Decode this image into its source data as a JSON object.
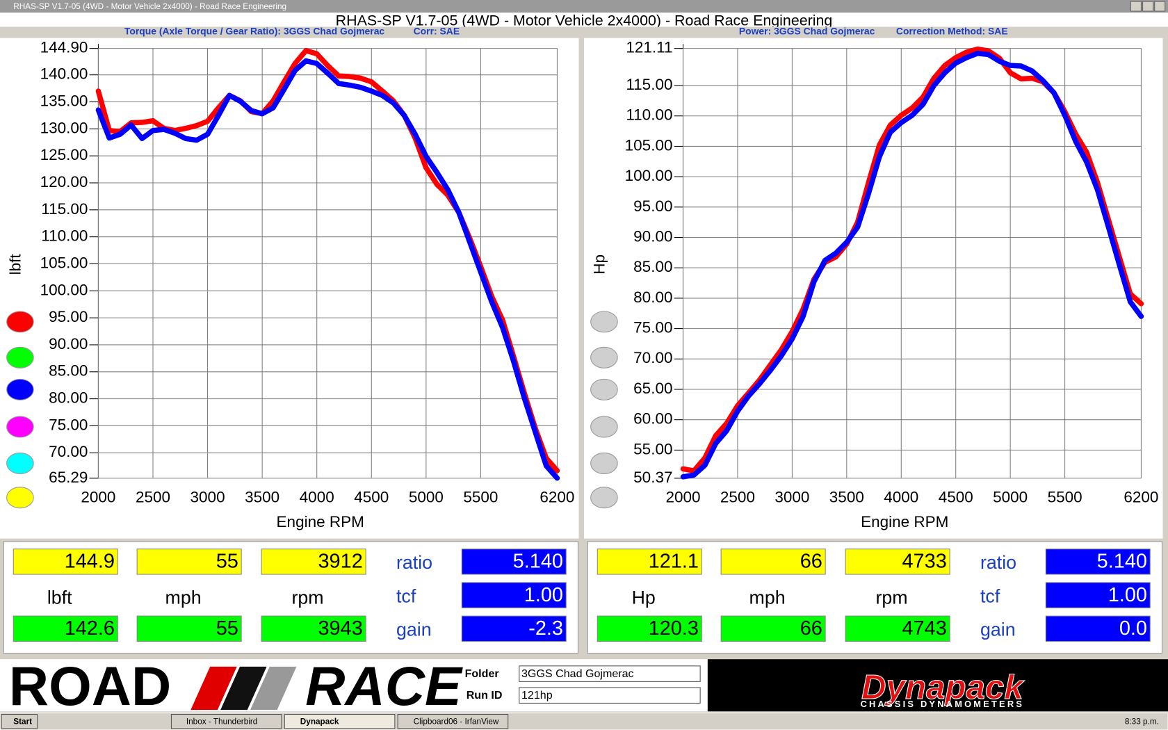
{
  "window": {
    "title": "RHAS-SP V1.7-05  (4WD - Motor Vehicle 2x4000) - Road Race Engineering"
  },
  "header": {
    "title": "RHAS-SP V1.7-05   (4WD - Motor Vehicle 2x4000) - Road Race Engineering"
  },
  "chart_data": [
    {
      "type": "line",
      "subtitle": "Torque (Axle Torque / Gear Ratio): 3GGS Chad Gojmerac",
      "correction": "Corr: SAE",
      "ylabel": "lbft",
      "xlabel": "Engine RPM",
      "grid": true,
      "x": [
        2000,
        2100,
        2200,
        2300,
        2400,
        2500,
        2600,
        2700,
        2800,
        2900,
        3000,
        3100,
        3200,
        3300,
        3400,
        3500,
        3600,
        3700,
        3800,
        3900,
        4000,
        4100,
        4200,
        4300,
        4400,
        4500,
        4600,
        4700,
        4800,
        4900,
        5000,
        5100,
        5200,
        5300,
        5400,
        5500,
        5600,
        5700,
        5800,
        5900,
        6000,
        6100,
        6200
      ],
      "xlim": [
        2000,
        6200
      ],
      "xticks": [
        2000,
        2500,
        3000,
        3500,
        4000,
        4500,
        5000,
        5500,
        6200
      ],
      "ylim": [
        65.29,
        144.9
      ],
      "yticks": [
        {
          "value": 65.29,
          "label": "65.29"
        },
        {
          "value": 70,
          "label": "70.00"
        },
        {
          "value": 75,
          "label": "75.00"
        },
        {
          "value": 80,
          "label": "80.00"
        },
        {
          "value": 85,
          "label": "85.00"
        },
        {
          "value": 90,
          "label": "90.00"
        },
        {
          "value": 95,
          "label": "95.00"
        },
        {
          "value": 100,
          "label": "100.00"
        },
        {
          "value": 105,
          "label": "105.00"
        },
        {
          "value": 110,
          "label": "110.00"
        },
        {
          "value": 115,
          "label": "115.00"
        },
        {
          "value": 120,
          "label": "120.00"
        },
        {
          "value": 125,
          "label": "125.00"
        },
        {
          "value": 130,
          "label": "130.00"
        },
        {
          "value": 135,
          "label": "135.00"
        },
        {
          "value": 140,
          "label": "140.00"
        },
        {
          "value": 144.9,
          "label": "144.90"
        }
      ],
      "series": [
        {
          "color": "#ff0000",
          "values": [
            137.0,
            129.7,
            129.5,
            131.1,
            131.2,
            131.5,
            130.1,
            129.7,
            130.1,
            130.6,
            131.4,
            133.9,
            136.2,
            135.2,
            133.2,
            132.8,
            135.2,
            138.7,
            142.1,
            144.5,
            143.9,
            141.7,
            139.8,
            139.7,
            139.4,
            138.7,
            137.0,
            135.2,
            132.5,
            128.3,
            122.8,
            119.7,
            117.7,
            114.5,
            109.7,
            104.5,
            99.0,
            94.6,
            87.9,
            81.0,
            74.5,
            69.0,
            66.7
          ]
        },
        {
          "color": "#0000ff",
          "values": [
            133.5,
            128.3,
            129.0,
            130.7,
            128.2,
            129.7,
            129.9,
            129.2,
            128.2,
            127.9,
            129.0,
            132.5,
            136.2,
            135.1,
            133.4,
            132.8,
            133.9,
            137.3,
            140.8,
            142.6,
            142.1,
            140.3,
            138.4,
            138.1,
            137.7,
            137.0,
            136.2,
            134.8,
            132.5,
            129.0,
            124.9,
            121.9,
            118.7,
            114.5,
            109.0,
            103.5,
            98.0,
            93.2,
            87.0,
            80.1,
            73.8,
            67.6,
            65.3
          ]
        }
      ]
    },
    {
      "type": "line",
      "subtitle": "Power: 3GGS Chad Gojmerac",
      "correction": "Correction Method: SAE",
      "ylabel": "Hp",
      "xlabel": "Engine RPM",
      "grid": true,
      "x": [
        2000,
        2100,
        2200,
        2300,
        2400,
        2500,
        2600,
        2700,
        2800,
        2900,
        3000,
        3100,
        3200,
        3300,
        3400,
        3500,
        3600,
        3700,
        3800,
        3900,
        4000,
        4100,
        4200,
        4300,
        4400,
        4500,
        4600,
        4700,
        4800,
        4900,
        5000,
        5100,
        5200,
        5300,
        5400,
        5500,
        5600,
        5700,
        5800,
        5900,
        6000,
        6100,
        6200
      ],
      "xlim": [
        2000,
        6200
      ],
      "xticks": [
        2000,
        2500,
        3000,
        3500,
        4000,
        4500,
        5000,
        5500,
        6200
      ],
      "ylim": [
        50.37,
        121.11
      ],
      "yticks": [
        {
          "value": 50.37,
          "label": "50.37"
        },
        {
          "value": 55,
          "label": "55.00"
        },
        {
          "value": 60,
          "label": "60.00"
        },
        {
          "value": 65,
          "label": "65.00"
        },
        {
          "value": 70,
          "label": "70.00"
        },
        {
          "value": 75,
          "label": "75.00"
        },
        {
          "value": 80,
          "label": "80.00"
        },
        {
          "value": 85,
          "label": "85.00"
        },
        {
          "value": 90,
          "label": "90.00"
        },
        {
          "value": 95,
          "label": "95.00"
        },
        {
          "value": 100,
          "label": "100.00"
        },
        {
          "value": 105,
          "label": "105.00"
        },
        {
          "value": 110,
          "label": "110.00"
        },
        {
          "value": 115,
          "label": "115.00"
        },
        {
          "value": 121.11,
          "label": "121.11"
        }
      ],
      "series": [
        {
          "color": "#ff0000",
          "values": [
            51.9,
            51.6,
            53.7,
            57.4,
            59.4,
            62.3,
            64.4,
            66.5,
            69.0,
            71.5,
            74.5,
            78.2,
            83.1,
            85.9,
            86.8,
            88.9,
            92.5,
            99.0,
            105.2,
            108.5,
            110.1,
            111.3,
            113.1,
            116.2,
            118.3,
            119.6,
            120.5,
            121.0,
            120.7,
            119.5,
            117.1,
            116.1,
            116.2,
            115.6,
            113.8,
            110.7,
            107.0,
            104.0,
            99.0,
            92.9,
            86.8,
            80.7,
            79.1
          ]
        },
        {
          "color": "#0000ff",
          "values": [
            50.6,
            50.9,
            52.5,
            56.1,
            58.2,
            61.4,
            63.9,
            65.9,
            68.1,
            70.5,
            73.3,
            77.0,
            82.7,
            86.2,
            87.4,
            89.2,
            91.7,
            97.2,
            103.3,
            107.3,
            108.9,
            110.1,
            111.9,
            115.0,
            117.1,
            118.7,
            119.6,
            120.3,
            120.1,
            119.0,
            118.3,
            118.2,
            117.4,
            115.8,
            113.8,
            110.1,
            105.8,
            102.4,
            97.8,
            91.7,
            85.5,
            79.4,
            77.0
          ]
        }
      ]
    }
  ],
  "readouts": [
    {
      "peak": [
        "144.9",
        "55",
        "3912"
      ],
      "units": [
        "lbft",
        "mph",
        "rpm"
      ],
      "current": [
        "142.6",
        "55",
        "3943"
      ],
      "params": [
        "ratio",
        "tcf",
        "gain"
      ],
      "param_values": [
        "5.140",
        "1.00",
        "-2.3"
      ]
    },
    {
      "peak": [
        "121.1",
        "66",
        "4733"
      ],
      "units": [
        "Hp",
        "mph",
        "rpm"
      ],
      "current": [
        "120.3",
        "66",
        "4743"
      ],
      "params": [
        "ratio",
        "tcf",
        "gain"
      ],
      "param_values": [
        "5.140",
        "1.00",
        "0.0"
      ]
    }
  ],
  "footer": {
    "logo_left": "ROAD",
    "logo_right": "RACE",
    "folder_label": "Folder",
    "folder": "3GGS Chad Gojmerac",
    "run_label": "Run ID",
    "run": "121hp",
    "brand": "Dynapack",
    "brand_sub": "CHASSIS DYNAMOMETERS"
  },
  "taskbar": {
    "start": "Start",
    "items": [
      "Inbox - Thunderbird",
      "Dynapack",
      "Clipboard06 - IrfanView"
    ],
    "clock": "8:33 p.m."
  }
}
